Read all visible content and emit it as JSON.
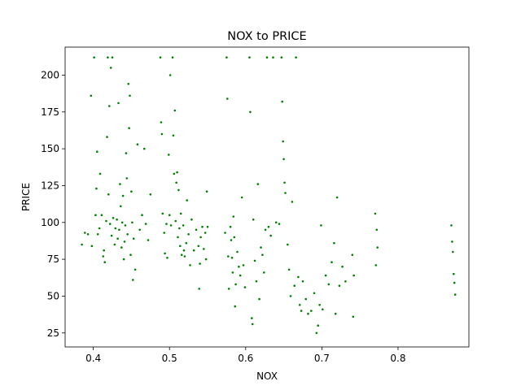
{
  "chart_data": {
    "type": "scatter",
    "title": "NOX to PRICE",
    "xlabel": "NOX",
    "ylabel": "PRICE",
    "xlim": [
      0.363,
      0.893
    ],
    "ylim": [
      15.5,
      219
    ],
    "xticks": [
      0.4,
      0.5,
      0.6,
      0.7,
      0.8
    ],
    "xtick_labels": [
      "0.4",
      "0.5",
      "0.6",
      "0.7",
      "0.8"
    ],
    "yticks": [
      25,
      50,
      75,
      100,
      125,
      150,
      175,
      200
    ],
    "ytick_labels": [
      "25",
      "50",
      "75",
      "100",
      "125",
      "150",
      "175",
      "200"
    ],
    "grid": false,
    "legend": "none",
    "marker_color": "#008000",
    "series": [
      {
        "points": [
          [
            0.385,
            85
          ],
          [
            0.389,
            93
          ],
          [
            0.393,
            92
          ],
          [
            0.397,
            186
          ],
          [
            0.398,
            84
          ],
          [
            0.401,
            212
          ],
          [
            0.403,
            105
          ],
          [
            0.404,
            123
          ],
          [
            0.405,
            148
          ],
          [
            0.406,
            92
          ],
          [
            0.408,
            96
          ],
          [
            0.409,
            133
          ],
          [
            0.411,
            105
          ],
          [
            0.413,
            77
          ],
          [
            0.414,
            81
          ],
          [
            0.415,
            73
          ],
          [
            0.417,
            101
          ],
          [
            0.418,
            158
          ],
          [
            0.419,
            212
          ],
          [
            0.42,
            119
          ],
          [
            0.421,
            179
          ],
          [
            0.422,
            99
          ],
          [
            0.423,
            205
          ],
          [
            0.424,
            91
          ],
          [
            0.425,
            212
          ],
          [
            0.426,
            103
          ],
          [
            0.428,
            85
          ],
          [
            0.429,
            96
          ],
          [
            0.431,
            102
          ],
          [
            0.432,
            89
          ],
          [
            0.433,
            181
          ],
          [
            0.434,
            95
          ],
          [
            0.435,
            126
          ],
          [
            0.436,
            111
          ],
          [
            0.437,
            83
          ],
          [
            0.438,
            100
          ],
          [
            0.439,
            118
          ],
          [
            0.44,
            75
          ],
          [
            0.441,
            87
          ],
          [
            0.442,
            98
          ],
          [
            0.443,
            147
          ],
          [
            0.444,
            130
          ],
          [
            0.445,
            92
          ],
          [
            0.446,
            194
          ],
          [
            0.447,
            164
          ],
          [
            0.448,
            186
          ],
          [
            0.449,
            78
          ],
          [
            0.45,
            121
          ],
          [
            0.451,
            100
          ],
          [
            0.452,
            61
          ],
          [
            0.453,
            89
          ],
          [
            0.455,
            68
          ],
          [
            0.458,
            153
          ],
          [
            0.461,
            95
          ],
          [
            0.464,
            105
          ],
          [
            0.467,
            150
          ],
          [
            0.469,
            99
          ],
          [
            0.472,
            88
          ],
          [
            0.475,
            119
          ],
          [
            0.488,
            212
          ],
          [
            0.489,
            168
          ],
          [
            0.49,
            160
          ],
          [
            0.491,
            106
          ],
          [
            0.493,
            93
          ],
          [
            0.494,
            79
          ],
          [
            0.496,
            99
          ],
          [
            0.497,
            76
          ],
          [
            0.499,
            146
          ],
          [
            0.5,
            105
          ],
          [
            0.501,
            200
          ],
          [
            0.502,
            98
          ],
          [
            0.504,
            212
          ],
          [
            0.505,
            159
          ],
          [
            0.506,
            133
          ],
          [
            0.507,
            176
          ],
          [
            0.508,
            101
          ],
          [
            0.509,
            127
          ],
          [
            0.51,
            134
          ],
          [
            0.511,
            90
          ],
          [
            0.512,
            122
          ],
          [
            0.513,
            96
          ],
          [
            0.514,
            84
          ],
          [
            0.515,
            106
          ],
          [
            0.516,
            78
          ],
          [
            0.518,
            98
          ],
          [
            0.519,
            81
          ],
          [
            0.52,
            77
          ],
          [
            0.522,
            86
          ],
          [
            0.523,
            115
          ],
          [
            0.525,
            92
          ],
          [
            0.527,
            71
          ],
          [
            0.529,
            102
          ],
          [
            0.532,
            81
          ],
          [
            0.535,
            95
          ],
          [
            0.538,
            84
          ],
          [
            0.539,
            55
          ],
          [
            0.54,
            72
          ],
          [
            0.541,
            90
          ],
          [
            0.543,
            97
          ],
          [
            0.545,
            82
          ],
          [
            0.547,
            93
          ],
          [
            0.548,
            75
          ],
          [
            0.549,
            121
          ],
          [
            0.55,
            97
          ],
          [
            0.573,
            93
          ],
          [
            0.575,
            212
          ],
          [
            0.576,
            184
          ],
          [
            0.577,
            77
          ],
          [
            0.578,
            55
          ],
          [
            0.58,
            97
          ],
          [
            0.581,
            88
          ],
          [
            0.582,
            76
          ],
          [
            0.583,
            66
          ],
          [
            0.584,
            104
          ],
          [
            0.585,
            90
          ],
          [
            0.586,
            43
          ],
          [
            0.587,
            58
          ],
          [
            0.589,
            80
          ],
          [
            0.591,
            70
          ],
          [
            0.593,
            64
          ],
          [
            0.595,
            117
          ],
          [
            0.597,
            71
          ],
          [
            0.599,
            56
          ],
          [
            0.605,
            212
          ],
          [
            0.606,
            175
          ],
          [
            0.608,
            35
          ],
          [
            0.609,
            31
          ],
          [
            0.61,
            102
          ],
          [
            0.612,
            74
          ],
          [
            0.614,
            60
          ],
          [
            0.616,
            126
          ],
          [
            0.618,
            48
          ],
          [
            0.62,
            83
          ],
          [
            0.622,
            78
          ],
          [
            0.624,
            66
          ],
          [
            0.626,
            95
          ],
          [
            0.628,
            212
          ],
          [
            0.63,
            97
          ],
          [
            0.633,
            91
          ],
          [
            0.636,
            212
          ],
          [
            0.64,
            100
          ],
          [
            0.644,
            99
          ],
          [
            0.647,
            212
          ],
          [
            0.648,
            182
          ],
          [
            0.649,
            155
          ],
          [
            0.65,
            143
          ],
          [
            0.651,
            127
          ],
          [
            0.652,
            120
          ],
          [
            0.655,
            85
          ],
          [
            0.657,
            68
          ],
          [
            0.659,
            50
          ],
          [
            0.661,
            114
          ],
          [
            0.664,
            57
          ],
          [
            0.666,
            212
          ],
          [
            0.669,
            63
          ],
          [
            0.671,
            44
          ],
          [
            0.673,
            40
          ],
          [
            0.675,
            60
          ],
          [
            0.679,
            48
          ],
          [
            0.682,
            38
          ],
          [
            0.686,
            40
          ],
          [
            0.69,
            52
          ],
          [
            0.693,
            25
          ],
          [
            0.695,
            30
          ],
          [
            0.697,
            44
          ],
          [
            0.699,
            98
          ],
          [
            0.701,
            41
          ],
          [
            0.705,
            64
          ],
          [
            0.709,
            58
          ],
          [
            0.713,
            73
          ],
          [
            0.716,
            86
          ],
          [
            0.718,
            38
          ],
          [
            0.72,
            117
          ],
          [
            0.723,
            57
          ],
          [
            0.727,
            70
          ],
          [
            0.731,
            60
          ],
          [
            0.74,
            78
          ],
          [
            0.741,
            36
          ],
          [
            0.742,
            64
          ],
          [
            0.77,
            106
          ],
          [
            0.771,
            71
          ],
          [
            0.772,
            95
          ],
          [
            0.773,
            83
          ],
          [
            0.87,
            98
          ],
          [
            0.871,
            87
          ],
          [
            0.872,
            80
          ],
          [
            0.873,
            65
          ],
          [
            0.874,
            59
          ],
          [
            0.875,
            51
          ]
        ]
      }
    ]
  }
}
